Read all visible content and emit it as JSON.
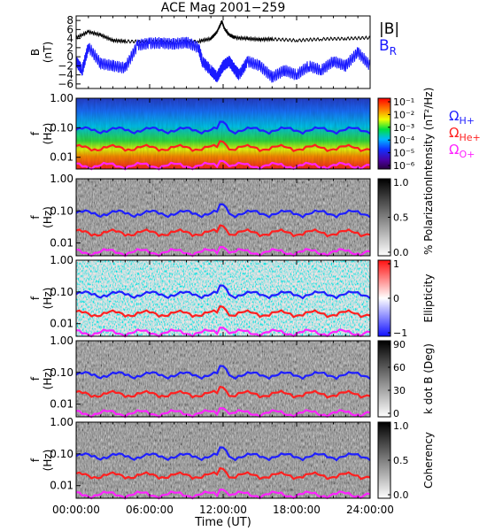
{
  "chart_data": {
    "type": "heatmap",
    "title": "ACE Mag 2001−259",
    "xlabel": "Time (UT)",
    "x_ticks": [
      "00:00:00",
      "06:00:00",
      "12:00:00",
      "18:00:00",
      "24:00:00"
    ],
    "x_range_hours": [
      0,
      24
    ],
    "freq_ticks": [
      "1.00",
      "0.10",
      "0.01"
    ],
    "freq_range_hz": [
      0.004,
      1.0
    ],
    "freq_scale": "log",
    "lines": [
      {
        "name": "ΩH+",
        "color": "#1f1fff",
        "freq_hz": 0.085
      },
      {
        "name": "ΩHe+",
        "color": "#ff2020",
        "freq_hz": 0.021
      },
      {
        "name": "ΩO+",
        "color": "#ff22ff",
        "freq_hz": 0.0053
      }
    ],
    "panels": [
      {
        "id": "b",
        "ylabel": [
          "B",
          "(nT)"
        ],
        "yticks": [
          "8",
          "6",
          "4",
          "2",
          "0",
          "−2",
          "−4",
          "−6"
        ],
        "ylim": [
          -7,
          9
        ],
        "legend": [
          {
            "text": "|B|",
            "color": "#000000"
          },
          {
            "text": "B",
            "sub": "R",
            "color": "#1a1aff"
          }
        ],
        "series": [
          {
            "name": "|B|",
            "color": "#000000",
            "x": [
              0,
              1,
              2,
              3,
              4,
              6,
              8,
              10,
              11,
              11.5,
              11.9,
              12.1,
              12.5,
              13,
              14,
              15,
              16,
              18,
              20,
              22,
              24
            ],
            "y": [
              4.2,
              5.5,
              4.8,
              3.6,
              3.4,
              3.3,
              3.2,
              3.4,
              4,
              5.5,
              7.8,
              6.2,
              4.8,
              4.2,
              4,
              3.8,
              3.9,
              3.6,
              3.9,
              4,
              4.2
            ]
          },
          {
            "name": "BR",
            "color": "#1a1aff",
            "x": [
              0,
              0.5,
              1,
              2,
              3,
              4,
              5,
              6,
              7,
              8,
              9,
              10,
              10.3,
              11,
              11.5,
              12,
              12.5,
              13,
              13.3,
              14,
              15,
              16,
              17,
              18,
              19,
              20,
              21,
              22,
              23,
              24
            ],
            "y": [
              -1,
              -3,
              2.2,
              -1.5,
              -2,
              -2.5,
              2.5,
              3,
              3,
              2.8,
              3.2,
              2,
              -1,
              -3,
              -4.5,
              -2,
              -1,
              -3,
              -4,
              -1,
              -2,
              -4.5,
              -3,
              -4,
              -2,
              -3,
              -1,
              -2,
              1,
              -2
            ]
          }
        ]
      },
      {
        "id": "intensity",
        "ylabel": [
          "f",
          "(Hz)"
        ],
        "colorbar": {
          "label": "Intensity (nT²/Hz)",
          "ticks": [
            "10⁻¹",
            "10⁻²",
            "10⁻³",
            "10⁻⁴",
            "10⁻⁵",
            "10⁻⁶"
          ]
        }
      },
      {
        "id": "polarization",
        "ylabel": [
          "f",
          "(Hz)"
        ],
        "colorbar": {
          "label": "% Polarization",
          "ticks": [
            "1.0",
            "0.5",
            "0.0"
          ]
        }
      },
      {
        "id": "ellipticity",
        "ylabel": [
          "f",
          "(Hz)"
        ],
        "colorbar": {
          "label": "Ellipticity",
          "ticks": [
            "1",
            "0",
            "−1"
          ]
        }
      },
      {
        "id": "kdotb",
        "ylabel": [
          "f",
          "(Hz)"
        ],
        "colorbar": {
          "label": "k dot B (Deg)",
          "ticks": [
            "90",
            "60",
            "30",
            "0"
          ]
        }
      },
      {
        "id": "coherency",
        "ylabel": [
          "f",
          "(Hz)"
        ],
        "colorbar": {
          "label": "Coherency",
          "ticks": [
            "1.0",
            "0.5",
            "0.0"
          ]
        }
      }
    ]
  }
}
